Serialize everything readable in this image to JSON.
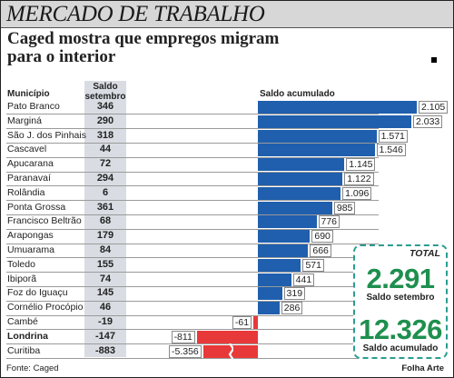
{
  "header": {
    "section_title": "MERCADO DE TRABALHO"
  },
  "headline": "Caged mostra que empregos migram para o interior",
  "columns": {
    "municipio": "Município",
    "saldo_setembro": "Saldo setembro",
    "saldo_acumulado": "Saldo acumulado"
  },
  "chart_data": {
    "type": "bar",
    "orientation": "horizontal",
    "categories": [
      "Pato Branco",
      "Marginá",
      "São J. dos Pinhais",
      "Cascavel",
      "Apucarana",
      "Paranavaí",
      "Rolândia",
      "Ponta Grossa",
      "Francisco Beltrão",
      "Arapongas",
      "Umuarama",
      "Toledo",
      "Ibiporã",
      "Foz do Iguaçu",
      "Cornélio Procópio",
      "Cambé",
      "Londrina",
      "Curitiba"
    ],
    "bold_categories": [
      "Londrina"
    ],
    "series": [
      {
        "name": "Saldo setembro",
        "values": [
          346,
          290,
          318,
          44,
          72,
          294,
          6,
          361,
          68,
          179,
          84,
          155,
          74,
          145,
          46,
          -19,
          -147,
          -883
        ],
        "labels": [
          "346",
          "290",
          "318",
          "44",
          "72",
          "294",
          "6",
          "361",
          "68",
          "179",
          "84",
          "155",
          "74",
          "145",
          "46",
          "-19",
          "-147",
          "-883"
        ]
      },
      {
        "name": "Saldo acumulado",
        "values": [
          2105,
          2033,
          1571,
          1546,
          1145,
          1122,
          1096,
          985,
          776,
          690,
          666,
          571,
          441,
          319,
          286,
          -61,
          -811,
          -5356
        ],
        "labels": [
          "2.105",
          "2.033",
          "1.571",
          "1.546",
          "1.145",
          "1.122",
          "1.096",
          "985",
          "776",
          "690",
          "666",
          "571",
          "441",
          "319",
          "286",
          "-61",
          "-811",
          "-5.356"
        ]
      }
    ],
    "broken_axis_categories": [
      "Curitiba"
    ],
    "colors": {
      "positive": "#1f5fae",
      "negative": "#e8393a"
    }
  },
  "total": {
    "label": "TOTAL",
    "saldo_setembro": "2.291",
    "saldo_setembro_label": "Saldo setembro",
    "saldo_acumulado": "12.326",
    "saldo_acumulado_label": "Saldo acumulado",
    "color": "#1e8f4e"
  },
  "footer": {
    "source": "Fonte: Caged",
    "credit": "Folha Arte"
  }
}
